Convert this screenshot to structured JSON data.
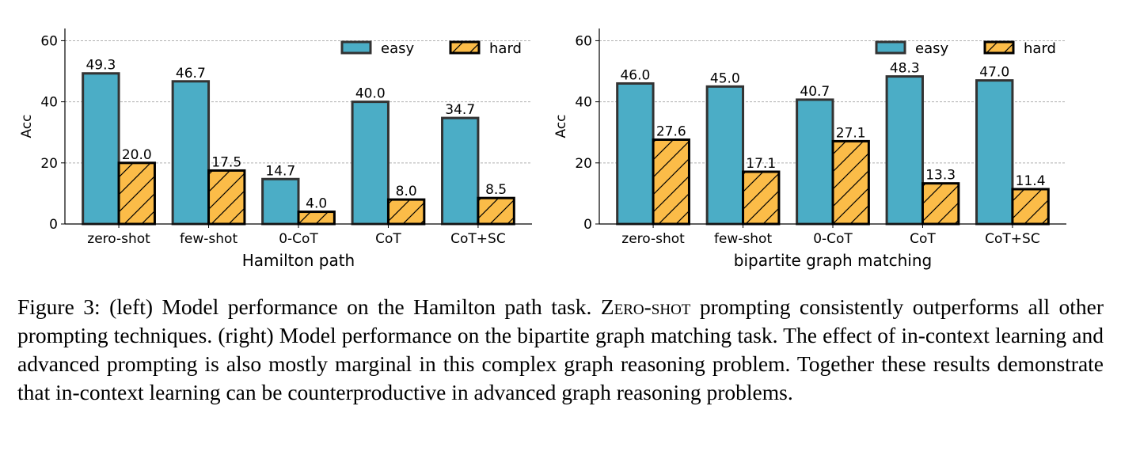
{
  "colors": {
    "easy": "#4badc6",
    "hard": "#fbbc48",
    "edge": "#000000",
    "grid": "#b0b0b0"
  },
  "chart_data": [
    {
      "type": "bar",
      "xlabel": "Hamilton path",
      "ylabel": "Acc",
      "ylim": [
        0,
        64
      ],
      "yticks": [
        0,
        20,
        40,
        60
      ],
      "grid": true,
      "legend_position": "top-right",
      "categories": [
        "zero-shot",
        "few-shot",
        "0-CoT",
        "CoT",
        "CoT+SC"
      ],
      "series": [
        {
          "name": "easy",
          "values": [
            49.3,
            46.7,
            14.7,
            40.0,
            34.7
          ],
          "labels": [
            "49.3",
            "46.7",
            "14.7",
            "40.0",
            "34.7"
          ]
        },
        {
          "name": "hard",
          "values": [
            20.0,
            17.5,
            4.0,
            8.0,
            8.5
          ],
          "labels": [
            "20.0",
            "17.5",
            "4.0",
            "8.0",
            "8.5"
          ]
        }
      ]
    },
    {
      "type": "bar",
      "xlabel": "bipartite graph matching",
      "ylabel": "Acc",
      "ylim": [
        0,
        64
      ],
      "yticks": [
        0,
        20,
        40,
        60
      ],
      "grid": true,
      "legend_position": "top-right",
      "categories": [
        "zero-shot",
        "few-shot",
        "0-CoT",
        "CoT",
        "CoT+SC"
      ],
      "series": [
        {
          "name": "easy",
          "values": [
            46.0,
            45.0,
            40.7,
            48.3,
            47.0
          ],
          "labels": [
            "46.0",
            "45.0",
            "40.7",
            "48.3",
            "47.0"
          ]
        },
        {
          "name": "hard",
          "values": [
            27.6,
            17.1,
            27.1,
            13.3,
            11.4
          ],
          "labels": [
            "27.6",
            "17.1",
            "27.1",
            "13.3",
            "11.4"
          ]
        }
      ]
    }
  ],
  "caption": {
    "part1": "Figure 3: (left) Model performance on the Hamilton path task.",
    "smallcaps": "Zero-shot",
    "part2": "prompting consistently outperforms all other prompting techniques.  (right) Model performance on the bipartite graph matching task. The effect of in-context learning and advanced prompting is also mostly marginal in this complex graph reasoning problem. Together these results demonstrate that in-context learning can be counterproductive in advanced graph reasoning problems."
  }
}
